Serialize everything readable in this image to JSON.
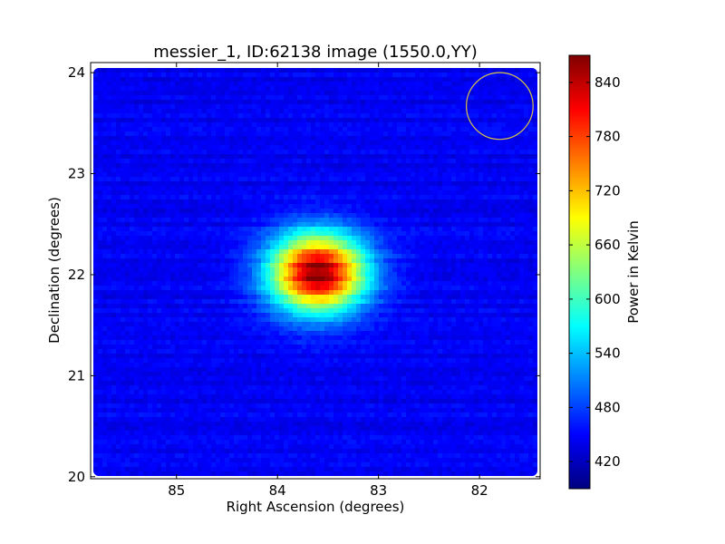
{
  "chart_data": {
    "type": "heatmap",
    "title": "messier_1, ID:62138 image (1550.0,YY)",
    "xlabel": "Right Ascension (degrees)",
    "ylabel": "Declination (degrees)",
    "xlim": [
      85.85,
      81.4
    ],
    "ylim": [
      19.98,
      24.1
    ],
    "xticks": [
      85,
      84,
      83,
      82
    ],
    "yticks": [
      20,
      21,
      22,
      23,
      24
    ],
    "background_level": 445,
    "source": {
      "ra": 83.6,
      "dec": 22.02,
      "peak": 870
    },
    "marker_circle": {
      "ra": 81.8,
      "dec": 23.67,
      "radius_deg": 0.33,
      "color": "#d4c34a"
    },
    "colorbar": {
      "label": "Power in Kelvin",
      "min": 390,
      "max": 870,
      "ticks": [
        420,
        480,
        540,
        600,
        660,
        720,
        780,
        840
      ],
      "colormap": "jet"
    }
  }
}
